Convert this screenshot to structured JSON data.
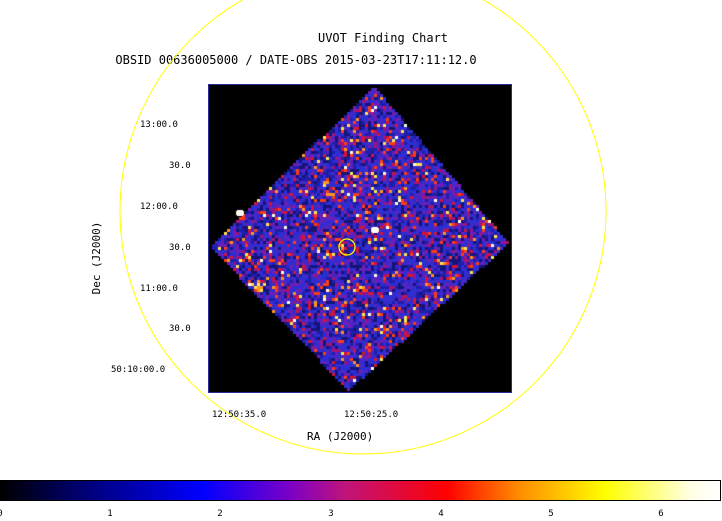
{
  "chart": {
    "title_line_1": "UVOT Finding Chart",
    "title_line_2": "OBSID 00636005000 / DATE-OBS 2015-03-23T17:11:12.0",
    "dec_axis_label": "Dec (J2000)",
    "ra_axis_label": "RA (J2000)",
    "dec_ticks": [
      "13:00.0",
      "30.0",
      "12:00.0",
      "30.0",
      "11:00.0",
      "30.0",
      "50:10:00.0"
    ],
    "ra_ticks": [
      "12:50:35.0",
      "12:50:25.0"
    ],
    "colorbar_ticks": [
      "0",
      "1",
      "2",
      "3",
      "4",
      "5",
      "6"
    ],
    "colorbar_range": [
      0,
      6.5
    ]
  },
  "colors": {
    "circle": "#ffff00",
    "frame": "#2a2a9a",
    "background": "#000000"
  }
}
